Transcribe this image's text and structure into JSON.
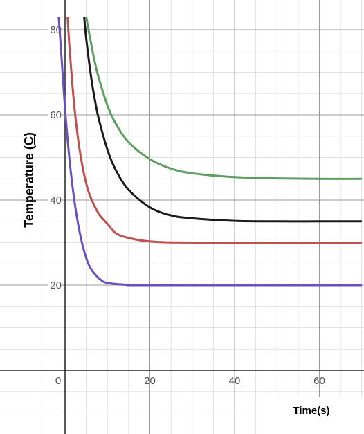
{
  "chart_data": {
    "type": "line",
    "title": "",
    "xlabel": "Time(s)",
    "ylabel_main": "Temperature (",
    "ylabel_unit": "C",
    "ylabel_close": ")",
    "xlim": [
      -9,
      70
    ],
    "ylim": [
      -14,
      83
    ],
    "x_ticks": [
      0,
      20,
      40,
      60
    ],
    "y_ticks": [
      20,
      40,
      60,
      80
    ],
    "x_tick_labels": [
      "0",
      "20",
      "40",
      "60"
    ],
    "y_tick_labels": [
      "20",
      "40",
      "60",
      "80"
    ],
    "grid": true,
    "legend": "none",
    "series": [
      {
        "color": "#5c9e5f",
        "x": [
          5,
          6,
          7,
          8,
          10,
          12,
          15,
          20,
          25,
          30,
          40,
          50,
          60,
          70
        ],
        "y": [
          83,
          77.5,
          72.5,
          68.5,
          62.2,
          57.9,
          53.6,
          49.6,
          47.4,
          46.3,
          45.4,
          45.1,
          45.0,
          45.0
        ]
      },
      {
        "color": "#1a1a1a",
        "x": [
          4.5,
          5,
          6,
          7,
          8,
          10,
          12,
          15,
          20,
          25,
          30,
          40,
          50,
          60,
          70
        ],
        "y": [
          83,
          77.9,
          69.9,
          63.7,
          58.9,
          51.8,
          47.0,
          42.4,
          38.3,
          36.4,
          35.7,
          35.1,
          35.0,
          35.0,
          35.0
        ]
      },
      {
        "color": "#c0504d",
        "x": [
          0.6,
          1,
          2,
          3,
          4,
          5,
          6,
          8,
          10,
          12,
          15,
          20,
          30,
          70
        ],
        "y": [
          83,
          76.6,
          63.9,
          54.9,
          48.5,
          43.9,
          40.7,
          36.7,
          34.4,
          32.2,
          31.1,
          30.3,
          30.0,
          30.0
        ]
      },
      {
        "color": "#6a4fbf",
        "x": [
          -1.5,
          -1,
          0,
          1,
          2,
          3,
          4,
          5,
          6,
          8,
          10,
          15,
          20,
          70
        ],
        "y": [
          83,
          76.0,
          61.4,
          50.0,
          41.3,
          34.8,
          29.9,
          26.4,
          24.0,
          21.6,
          20.5,
          20.05,
          20.0,
          20.0
        ]
      }
    ]
  }
}
